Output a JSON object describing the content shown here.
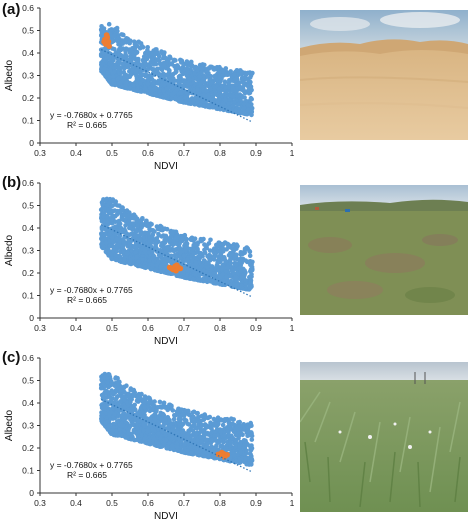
{
  "figure": {
    "panels": [
      {
        "label": "(a)",
        "photo": "desert-sand-dune-photo"
      },
      {
        "label": "(b)",
        "photo": "degraded-grassland-photo"
      },
      {
        "label": "(c)",
        "photo": "healthy-grassland-photo"
      }
    ]
  },
  "chart_data": [
    {
      "type": "scatter",
      "title": "",
      "xlabel": "NDVI",
      "ylabel": "Albedo",
      "xlim": [
        0.3,
        1.0
      ],
      "ylim": [
        0.0,
        0.6
      ],
      "xticks": [
        "0.3",
        "0.4",
        "0.5",
        "0.6",
        "0.7",
        "0.8",
        "0.9",
        "1"
      ],
      "yticks": [
        "0",
        "0.1",
        "0.2",
        "0.3",
        "0.4",
        "0.5",
        "0.6"
      ],
      "grid": false,
      "series": [
        {
          "color": "#5b9bd5",
          "region": "dense point cloud, NDVI 0.47–0.89, Albedo 0.10–0.53"
        },
        {
          "color": "#ed7d31",
          "x": [
            0.48,
            0.485,
            0.49,
            0.482,
            0.487,
            0.478,
            0.492
          ],
          "y": [
            0.46,
            0.48,
            0.45,
            0.44,
            0.47,
            0.45,
            0.43
          ]
        }
      ],
      "trendline": {
        "slope": -0.768,
        "intercept": 0.7765,
        "style": "dotted",
        "color": "#2e75b6"
      },
      "annotations": [
        "y = -0.7680x + 0.7765",
        "R² = 0.665"
      ]
    },
    {
      "type": "scatter",
      "title": "",
      "xlabel": "NDVI",
      "ylabel": "Albedo",
      "xlim": [
        0.3,
        1.0
      ],
      "ylim": [
        0.0,
        0.6
      ],
      "xticks": [
        "0.3",
        "0.4",
        "0.5",
        "0.6",
        "0.7",
        "0.8",
        "0.9",
        "1"
      ],
      "yticks": [
        "0",
        "0.1",
        "0.2",
        "0.3",
        "0.4",
        "0.5",
        "0.6"
      ],
      "grid": false,
      "series": [
        {
          "color": "#5b9bd5",
          "region": "dense point cloud, NDVI 0.47–0.89, Albedo 0.10–0.53"
        },
        {
          "color": "#ed7d31",
          "x": [
            0.665,
            0.675,
            0.685,
            0.67,
            0.68,
            0.69,
            0.66,
            0.678
          ],
          "y": [
            0.22,
            0.23,
            0.225,
            0.215,
            0.235,
            0.22,
            0.225,
            0.21
          ]
        }
      ],
      "trendline": {
        "slope": -0.768,
        "intercept": 0.7765,
        "style": "dotted",
        "color": "#2e75b6"
      },
      "annotations": [
        "y = -0.7680x + 0.7765",
        "R² = 0.665"
      ]
    },
    {
      "type": "scatter",
      "title": "",
      "xlabel": "NDVI",
      "ylabel": "Albedo",
      "xlim": [
        0.3,
        1.0
      ],
      "ylim": [
        0.0,
        0.6
      ],
      "xticks": [
        "0.3",
        "0.4",
        "0.5",
        "0.6",
        "0.7",
        "0.8",
        "0.9",
        "1"
      ],
      "yticks": [
        "0",
        "0.1",
        "0.2",
        "0.3",
        "0.4",
        "0.5",
        "0.6"
      ],
      "grid": false,
      "series": [
        {
          "color": "#5b9bd5",
          "region": "dense point cloud, NDVI 0.47–0.89, Albedo 0.10–0.53"
        },
        {
          "color": "#ed7d31",
          "x": [
            0.8,
            0.81,
            0.815,
            0.805,
            0.82,
            0.795,
            0.812
          ],
          "y": [
            0.17,
            0.175,
            0.165,
            0.18,
            0.17,
            0.172,
            0.16
          ]
        }
      ],
      "trendline": {
        "slope": -0.768,
        "intercept": 0.7765,
        "style": "dotted",
        "color": "#2e75b6"
      },
      "annotations": [
        "y = -0.7680x + 0.7765",
        "R² = 0.665"
      ]
    }
  ]
}
